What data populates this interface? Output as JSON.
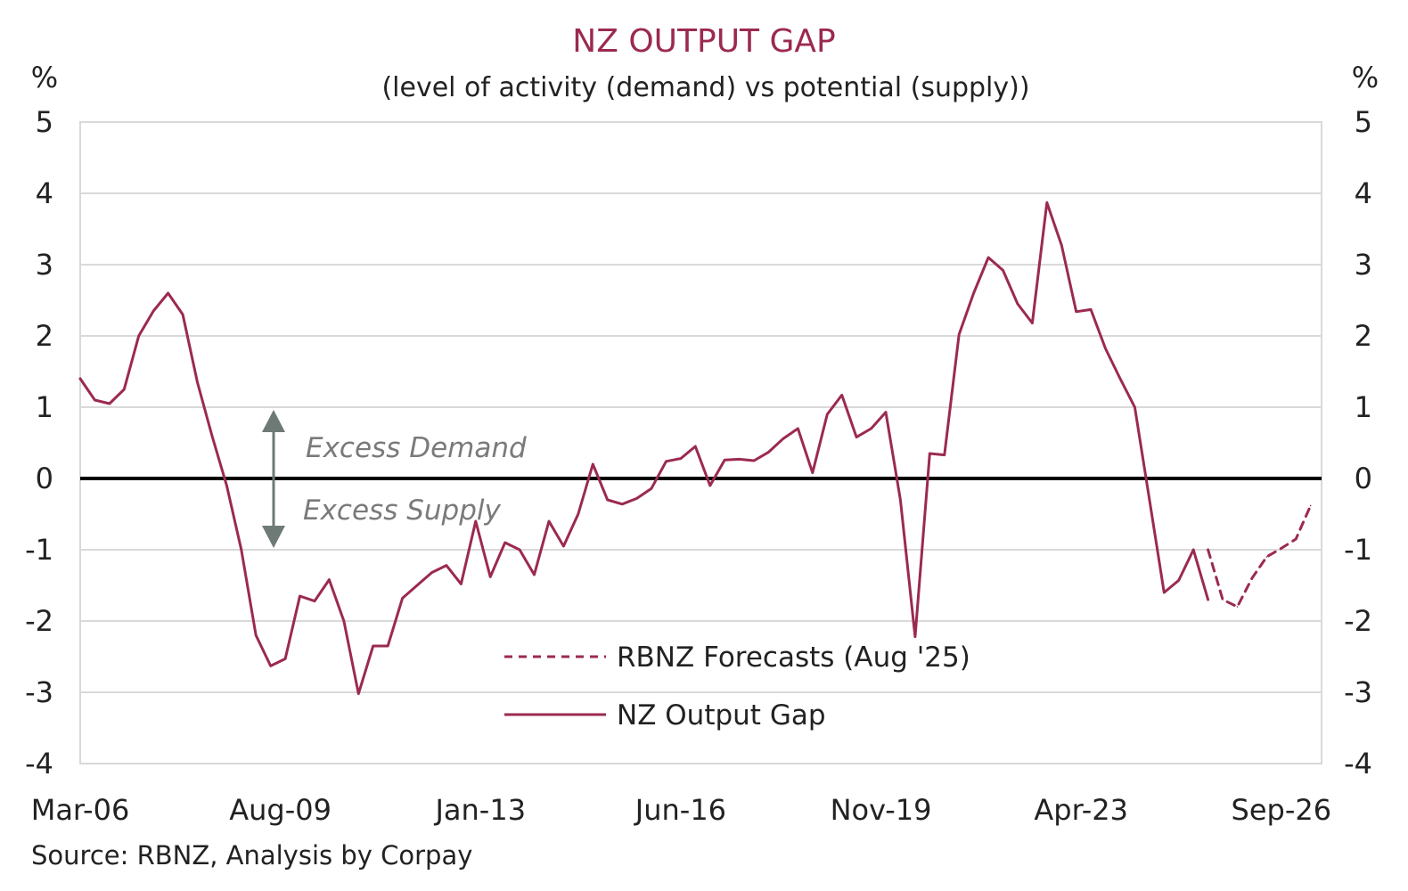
{
  "chart_data": {
    "type": "line",
    "title": "NZ OUTPUT GAP",
    "subtitle": "(level of activity (demand) vs potential (supply))",
    "y_unit_left": "%",
    "y_unit_right": "%",
    "ylim": [
      -4,
      5
    ],
    "y_ticks": [
      "5",
      "4",
      "3",
      "2",
      "1",
      "0",
      "-1",
      "-2",
      "-3",
      "-4"
    ],
    "x_tick_labels": [
      "Mar-06",
      "Aug-09",
      "Jan-13",
      "Jun-16",
      "Nov-19",
      "Apr-23",
      "Sep-26"
    ],
    "grid": true,
    "zero_line": true,
    "colors": {
      "series": "#9b2a4f",
      "grid": "#d9d9d9",
      "zero": "#000000",
      "annotation": "#7a7a7a"
    },
    "annotations": {
      "excess_demand": "Excess Demand",
      "excess_supply": "Excess Supply"
    },
    "source": "Source: RBNZ, Analysis by Corpay",
    "series": [
      {
        "name": "NZ Output Gap",
        "style": "solid",
        "x": [
          "Mar-06",
          "Jun-06",
          "Sep-06",
          "Dec-06",
          "Mar-07",
          "Jun-07",
          "Sep-07",
          "Dec-07",
          "Mar-08",
          "Jun-08",
          "Sep-08",
          "Dec-08",
          "Mar-09",
          "Jun-09",
          "Sep-09",
          "Dec-09",
          "Mar-10",
          "Jun-10",
          "Sep-10",
          "Dec-10",
          "Mar-11",
          "Jun-11",
          "Sep-11",
          "Dec-11",
          "Mar-12",
          "Jun-12",
          "Sep-12",
          "Dec-12",
          "Mar-13",
          "Jun-13",
          "Sep-13",
          "Dec-13",
          "Mar-14",
          "Jun-14",
          "Sep-14",
          "Dec-14",
          "Mar-15",
          "Jun-15",
          "Sep-15",
          "Dec-15",
          "Mar-16",
          "Jun-16",
          "Sep-16",
          "Dec-16",
          "Mar-17",
          "Jun-17",
          "Sep-17",
          "Dec-17",
          "Mar-18",
          "Jun-18",
          "Sep-18",
          "Dec-18",
          "Mar-19",
          "Jun-19",
          "Sep-19",
          "Dec-19",
          "Mar-20",
          "Jun-20",
          "Sep-20",
          "Dec-20",
          "Mar-21",
          "Jun-21",
          "Sep-21",
          "Dec-21",
          "Mar-22",
          "Jun-22",
          "Sep-22",
          "Dec-22",
          "Mar-23",
          "Jun-23",
          "Sep-23",
          "Dec-23",
          "Mar-24",
          "Jun-24",
          "Sep-24",
          "Dec-24",
          "Mar-25",
          "Jun-25"
        ],
        "values": [
          1.4,
          1.1,
          1.05,
          1.25,
          2.0,
          2.35,
          2.6,
          2.3,
          1.35,
          0.6,
          -0.1,
          -1.0,
          -2.2,
          -2.63,
          -2.53,
          -1.65,
          -1.72,
          -1.42,
          -2.0,
          -3.02,
          -2.35,
          -2.35,
          -1.68,
          -1.5,
          -1.32,
          -1.22,
          -1.48,
          -0.6,
          -1.38,
          -0.9,
          -1.0,
          -1.35,
          -0.6,
          -0.95,
          -0.5,
          0.2,
          -0.3,
          -0.36,
          -0.28,
          -0.14,
          0.24,
          0.28,
          0.45,
          -0.1,
          0.26,
          0.27,
          0.25,
          0.37,
          0.56,
          0.7,
          0.08,
          0.9,
          1.17,
          0.58,
          0.7,
          0.93,
          -0.3,
          -2.22,
          0.35,
          0.33,
          2.02,
          2.6,
          3.1,
          2.92,
          2.45,
          2.18,
          3.87,
          3.27,
          2.34,
          2.37,
          1.82,
          1.4,
          1.0,
          -0.3,
          -1.6,
          -1.43,
          -1.0,
          -1.7
        ]
      },
      {
        "name": "RBNZ Forecasts (Aug '25)",
        "style": "dashed",
        "x": [
          "Jun-25",
          "Sep-25",
          "Dec-25",
          "Mar-26",
          "Jun-26",
          "Sep-26",
          "Dec-26",
          "Mar-27"
        ],
        "values": [
          -1.0,
          -1.7,
          -1.8,
          -1.4,
          -1.1,
          -0.98,
          -0.85,
          -0.38
        ]
      }
    ]
  },
  "legend": {
    "forecast_label": "RBNZ Forecasts (Aug '25)",
    "actual_label": "NZ Output Gap"
  }
}
